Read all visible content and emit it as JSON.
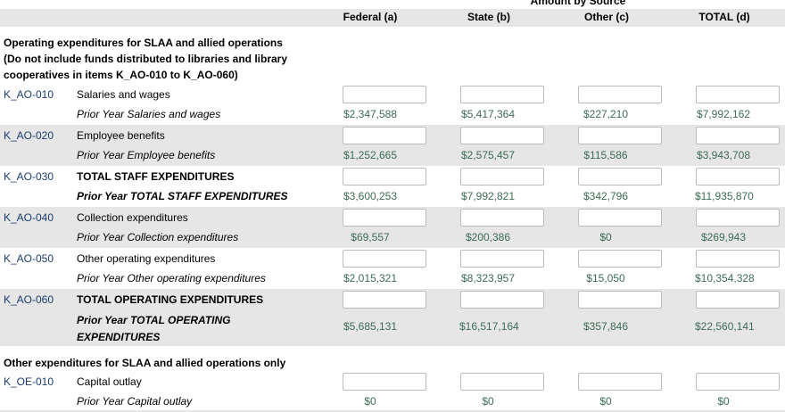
{
  "header": {
    "group": "Amount by Source",
    "columns": [
      "Federal (a)",
      "State (b)",
      "Other (c)",
      "TOTAL (d)"
    ]
  },
  "section1": {
    "title": "Operating expenditures for SLAA and allied operations (Do not include funds distributed to libraries and library cooperatives in items K_AO-010 to K_AO-060)"
  },
  "rows": [
    {
      "code": "K_AO-010",
      "label": "Salaries and wages",
      "prior_label": "Prior Year Salaries and wages",
      "prior": [
        "$2,347,588",
        "$5,417,364",
        "$227,210",
        "$7,992,162"
      ]
    },
    {
      "code": "K_AO-020",
      "label": "Employee benefits",
      "prior_label": "Prior Year Employee benefits",
      "prior": [
        "$1,252,665",
        "$2,575,457",
        "$115,586",
        "$3,943,708"
      ]
    },
    {
      "code": "K_AO-030",
      "label": "TOTAL STAFF EXPENDITURES",
      "prior_label": "Prior Year TOTAL STAFF EXPENDITURES",
      "prior": [
        "$3,600,253",
        "$7,992,821",
        "$342,796",
        "$11,935,870"
      ]
    },
    {
      "code": "K_AO-040",
      "label": "Collection expenditures",
      "prior_label": "Prior Year Collection expenditures",
      "prior": [
        "$69,557",
        "$200,386",
        "$0",
        "$269,943"
      ]
    },
    {
      "code": "K_AO-050",
      "label": "Other operating expenditures",
      "prior_label": "Prior Year Other operating expenditures",
      "prior": [
        "$2,015,321",
        "$8,323,957",
        "$15,050",
        "$10,354,328"
      ]
    },
    {
      "code": "K_AO-060",
      "label": "TOTAL OPERATING EXPENDITURES",
      "prior_label": "Prior Year TOTAL OPERATING EXPENDITURES",
      "prior": [
        "$5,685,131",
        "$16,517,164",
        "$357,846",
        "$22,560,141"
      ]
    }
  ],
  "section2": {
    "title": "Other expenditures for SLAA and allied operations only"
  },
  "rows2": [
    {
      "code": "K_OE-010",
      "label": "Capital outlay",
      "prior_label": "Prior Year Capital outlay",
      "prior": [
        "$0",
        "$0",
        "$0",
        "$0"
      ]
    }
  ]
}
